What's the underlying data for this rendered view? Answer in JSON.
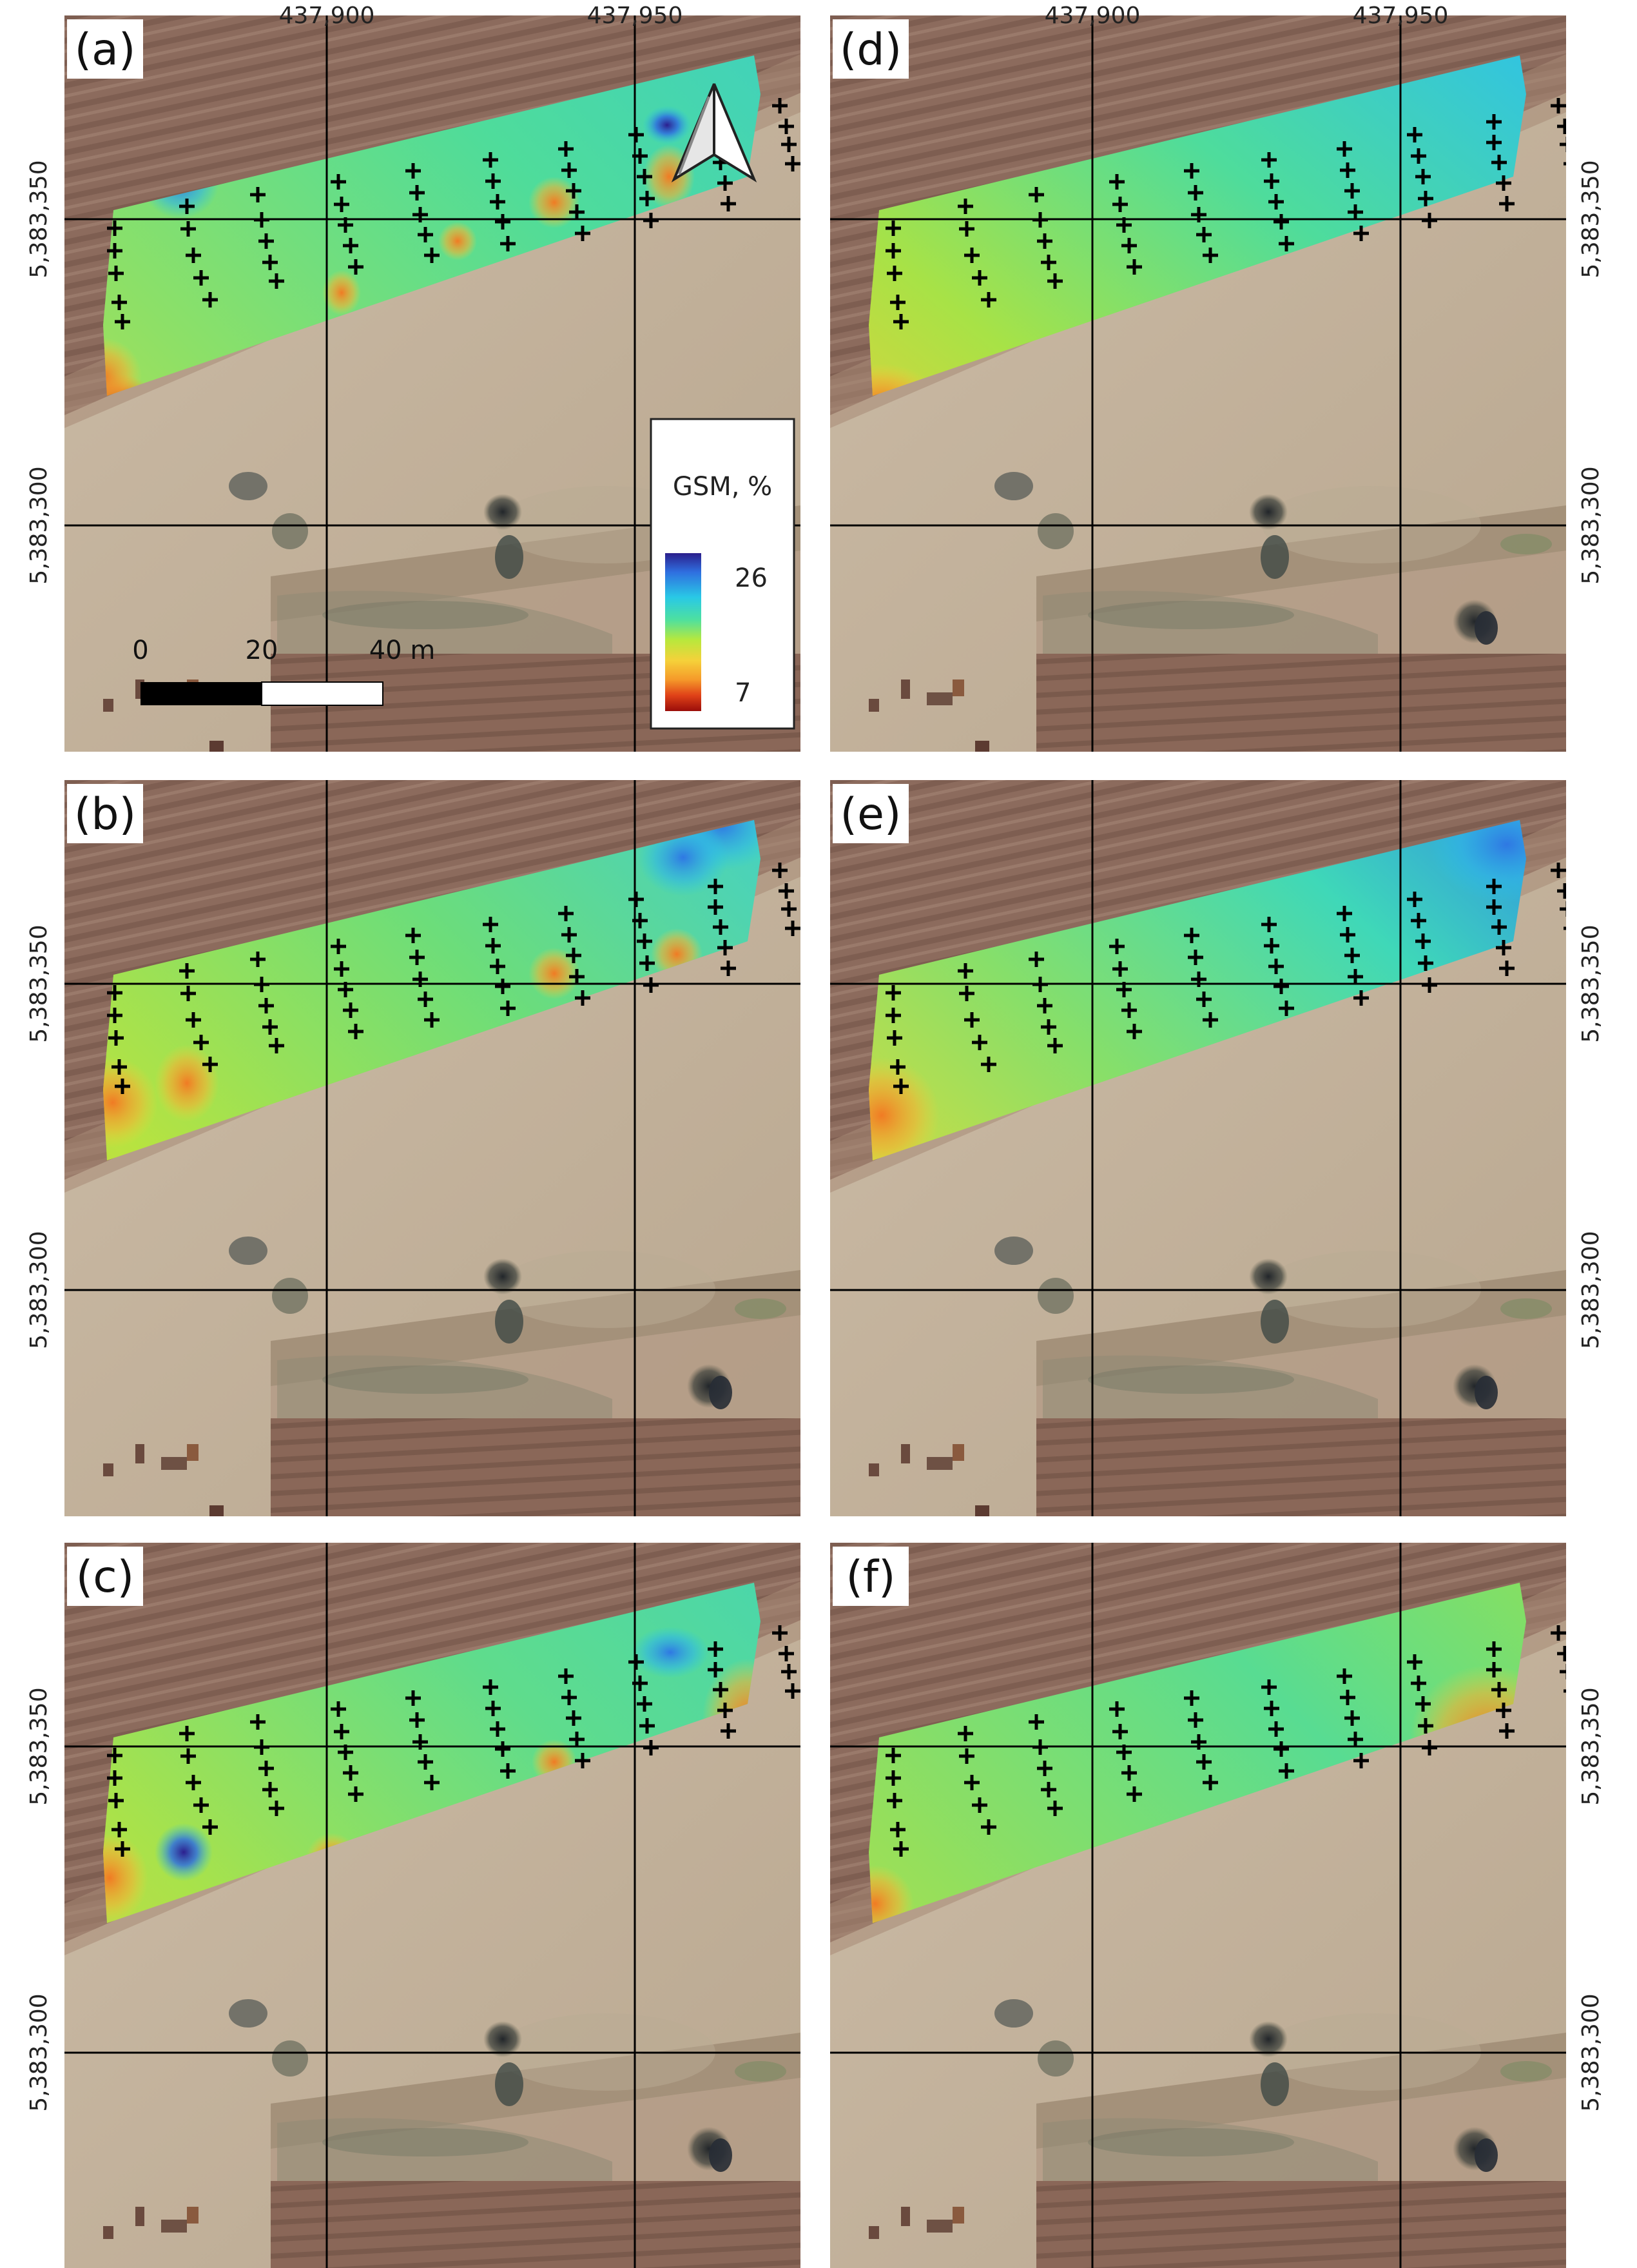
{
  "figure": {
    "x_ticks": [
      "437,900",
      "437,950"
    ],
    "y_ticks": [
      "5,383,350",
      "5,383,300"
    ],
    "panels": [
      {
        "label": "(a)",
        "variant": "interp-a"
      },
      {
        "label": "(b)",
        "variant": "interp-b"
      },
      {
        "label": "(c)",
        "variant": "interp-c"
      },
      {
        "label": "(d)",
        "variant": "smooth-d"
      },
      {
        "label": "(e)",
        "variant": "smooth-e"
      },
      {
        "label": "(f)",
        "variant": "smooth-f"
      }
    ],
    "legend": {
      "title": "GSM, %",
      "max_label": "26",
      "min_label": "7",
      "colors": [
        "#2b1f8c",
        "#2f6fe0",
        "#29c9e6",
        "#4de0a0",
        "#b8e83c",
        "#f5d13a",
        "#f59a2a",
        "#e04218",
        "#9a0d0a"
      ]
    },
    "scale_bar": {
      "labels": [
        "0",
        "20",
        "40 m"
      ]
    },
    "north_arrow_icon": "north-arrow-icon",
    "colors": {
      "background_field": "#8a6a5c",
      "dry_soil": "#c8b7a2",
      "sample_marker": "#000000",
      "grid_line": "#000000"
    }
  }
}
